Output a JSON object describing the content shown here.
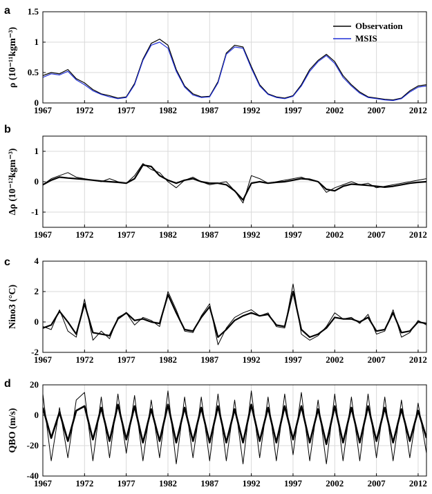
{
  "colors": {
    "observation": "#000000",
    "msis": "#1f2fd6",
    "grid": "#d9d9d9"
  },
  "chart_data": [
    {
      "panel": "a",
      "type": "line",
      "ylabel": "ρ (10⁻¹¹kgm⁻³)",
      "xlim": [
        1967,
        2013
      ],
      "ylim": [
        0,
        1.5
      ],
      "xticks": [
        1967,
        1972,
        1977,
        1982,
        1987,
        1992,
        1997,
        2002,
        2007,
        2012
      ],
      "yticks": [
        0,
        0.5,
        1,
        1.5
      ],
      "ytick_labels": [
        "0",
        "0.5",
        "1",
        "1.5"
      ],
      "grid": true,
      "legend": "top-right",
      "series": [
        {
          "name": "Observation",
          "x": [
            1967,
            1968,
            1969,
            1970,
            1971,
            1972,
            1973,
            1974,
            1975,
            1976,
            1977,
            1978,
            1979,
            1980,
            1981,
            1982,
            1983,
            1984,
            1985,
            1986,
            1987,
            1988,
            1989,
            1990,
            1991,
            1992,
            1993,
            1994,
            1995,
            1996,
            1997,
            1998,
            1999,
            2000,
            2001,
            2002,
            2003,
            2004,
            2005,
            2006,
            2007,
            2008,
            2009,
            2010,
            2011,
            2012,
            2013
          ],
          "y": [
            0.45,
            0.5,
            0.48,
            0.55,
            0.4,
            0.33,
            0.22,
            0.15,
            0.12,
            0.08,
            0.1,
            0.32,
            0.72,
            0.98,
            1.05,
            0.95,
            0.55,
            0.28,
            0.15,
            0.1,
            0.11,
            0.35,
            0.82,
            0.95,
            0.92,
            0.6,
            0.3,
            0.15,
            0.1,
            0.08,
            0.12,
            0.3,
            0.55,
            0.7,
            0.8,
            0.68,
            0.45,
            0.3,
            0.18,
            0.1,
            0.08,
            0.06,
            0.05,
            0.08,
            0.2,
            0.28,
            0.3
          ]
        },
        {
          "name": "MSIS",
          "x": [
            1967,
            1968,
            1969,
            1970,
            1971,
            1972,
            1973,
            1974,
            1975,
            1976,
            1977,
            1978,
            1979,
            1980,
            1981,
            1982,
            1983,
            1984,
            1985,
            1986,
            1987,
            1988,
            1989,
            1990,
            1991,
            1992,
            1993,
            1994,
            1995,
            1996,
            1997,
            1998,
            1999,
            2000,
            2001,
            2002,
            2003,
            2004,
            2005,
            2006,
            2007,
            2008,
            2009,
            2010,
            2011,
            2012,
            2013
          ],
          "y": [
            0.42,
            0.48,
            0.46,
            0.52,
            0.38,
            0.3,
            0.2,
            0.14,
            0.1,
            0.07,
            0.09,
            0.3,
            0.7,
            0.95,
            1.0,
            0.9,
            0.52,
            0.26,
            0.13,
            0.09,
            0.1,
            0.33,
            0.8,
            0.92,
            0.9,
            0.57,
            0.28,
            0.14,
            0.09,
            0.07,
            0.11,
            0.28,
            0.52,
            0.68,
            0.78,
            0.65,
            0.42,
            0.28,
            0.16,
            0.09,
            0.07,
            0.05,
            0.04,
            0.07,
            0.18,
            0.26,
            0.28
          ]
        }
      ]
    },
    {
      "panel": "b",
      "type": "line",
      "ylabel": "Δρ (10⁻¹²kgm⁻³)",
      "xlim": [
        1967,
        2013
      ],
      "ylim": [
        -1.5,
        1.5
      ],
      "xticks": [
        1967,
        1972,
        1977,
        1982,
        1987,
        1992,
        1997,
        2002,
        2007,
        2012
      ],
      "yticks": [
        -1,
        0,
        1
      ],
      "ytick_labels": [
        "-1",
        "0",
        "1"
      ],
      "grid": true,
      "series": [
        {
          "x": [
            1967,
            1968,
            1969,
            1970,
            1971,
            1972,
            1973,
            1974,
            1975,
            1976,
            1977,
            1978,
            1979,
            1980,
            1981,
            1982,
            1983,
            1984,
            1985,
            1986,
            1987,
            1988,
            1989,
            1990,
            1991,
            1992,
            1993,
            1994,
            1995,
            1996,
            1997,
            1998,
            1999,
            2000,
            2001,
            2002,
            2003,
            2004,
            2005,
            2006,
            2007,
            2008,
            2009,
            2010,
            2011,
            2012,
            2013
          ],
          "y": [
            -0.1,
            0.1,
            0.2,
            0.3,
            0.15,
            0.1,
            0.05,
            0.0,
            0.1,
            0.0,
            -0.05,
            0.2,
            0.6,
            0.4,
            0.3,
            0.0,
            -0.2,
            0.05,
            0.15,
            0.0,
            -0.1,
            -0.05,
            0.0,
            -0.3,
            -0.7,
            0.2,
            0.1,
            -0.05,
            0.0,
            0.05,
            0.1,
            0.15,
            0.05,
            0.0,
            -0.35,
            -0.2,
            -0.1,
            0.0,
            -0.1,
            -0.05,
            -0.2,
            -0.15,
            -0.1,
            -0.05,
            0.0,
            0.05,
            0.1
          ]
        },
        {
          "x": [
            1967,
            1968,
            1969,
            1970,
            1971,
            1972,
            1973,
            1974,
            1975,
            1976,
            1977,
            1978,
            1979,
            1980,
            1981,
            1982,
            1983,
            1984,
            1985,
            1986,
            1987,
            1988,
            1989,
            1990,
            1991,
            1992,
            1993,
            1994,
            1995,
            1996,
            1997,
            1998,
            1999,
            2000,
            2001,
            2002,
            2003,
            2004,
            2005,
            2006,
            2007,
            2008,
            2009,
            2010,
            2011,
            2012,
            2013
          ],
          "y": [
            -0.1,
            0.05,
            0.15,
            0.12,
            0.1,
            0.08,
            0.05,
            0.02,
            0.0,
            -0.02,
            -0.05,
            0.1,
            0.55,
            0.5,
            0.2,
            0.05,
            -0.05,
            0.05,
            0.1,
            0.0,
            -0.05,
            -0.05,
            -0.1,
            -0.3,
            -0.6,
            -0.05,
            0.0,
            -0.05,
            -0.02,
            0.0,
            0.05,
            0.1,
            0.08,
            0.0,
            -0.25,
            -0.3,
            -0.15,
            -0.08,
            -0.1,
            -0.12,
            -0.15,
            -0.18,
            -0.15,
            -0.1,
            -0.05,
            -0.02,
            0.0
          ]
        }
      ]
    },
    {
      "panel": "c",
      "type": "line",
      "ylabel": "Nino3 (°C)",
      "xlim": [
        1967,
        2013
      ],
      "ylim": [
        -2,
        4
      ],
      "xticks": [
        1967,
        1972,
        1977,
        1982,
        1987,
        1992,
        1997,
        2002,
        2007,
        2012
      ],
      "yticks": [
        -2,
        0,
        2,
        4
      ],
      "ytick_labels": [
        "-2",
        "0",
        "2",
        "4"
      ],
      "grid": true,
      "series": [
        {
          "x": [
            1967,
            1968,
            1969,
            1970,
            1971,
            1972,
            1973,
            1974,
            1975,
            1976,
            1977,
            1978,
            1979,
            1980,
            1981,
            1982,
            1983,
            1984,
            1985,
            1986,
            1987,
            1988,
            1989,
            1990,
            1991,
            1992,
            1993,
            1994,
            1995,
            1996,
            1997,
            1998,
            1999,
            2000,
            2001,
            2002,
            2003,
            2004,
            2005,
            2006,
            2007,
            2008,
            2009,
            2010,
            2011,
            2012,
            2013
          ],
          "y": [
            -0.3,
            -0.5,
            0.8,
            -0.6,
            -1.0,
            1.5,
            -1.2,
            -0.6,
            -1.1,
            0.3,
            0.6,
            -0.2,
            0.3,
            0.1,
            -0.3,
            2.0,
            0.8,
            -0.6,
            -0.7,
            0.4,
            1.2,
            -1.5,
            -0.4,
            0.3,
            0.6,
            0.8,
            0.4,
            0.6,
            -0.3,
            -0.4,
            2.5,
            -0.8,
            -1.2,
            -0.9,
            -0.3,
            0.6,
            0.2,
            0.3,
            -0.1,
            0.5,
            -0.8,
            -0.6,
            0.8,
            -1.0,
            -0.7,
            0.1,
            -0.2
          ]
        },
        {
          "x": [
            1967,
            1968,
            1969,
            1970,
            1971,
            1972,
            1973,
            1974,
            1975,
            1976,
            1977,
            1978,
            1979,
            1980,
            1981,
            1982,
            1983,
            1984,
            1985,
            1986,
            1987,
            1988,
            1989,
            1990,
            1991,
            1992,
            1993,
            1994,
            1995,
            1996,
            1997,
            1998,
            1999,
            2000,
            2001,
            2002,
            2003,
            2004,
            2005,
            2006,
            2007,
            2008,
            2009,
            2010,
            2011,
            2012,
            2013
          ],
          "y": [
            -0.4,
            -0.2,
            0.7,
            0.0,
            -0.8,
            1.2,
            -0.7,
            -0.8,
            -0.9,
            0.2,
            0.6,
            0.1,
            0.2,
            0.0,
            -0.1,
            1.8,
            0.6,
            -0.5,
            -0.6,
            0.3,
            1.0,
            -1.0,
            -0.5,
            0.1,
            0.4,
            0.6,
            0.4,
            0.5,
            -0.2,
            -0.3,
            2.0,
            -0.5,
            -1.0,
            -0.8,
            -0.4,
            0.3,
            0.2,
            0.2,
            0.0,
            0.3,
            -0.6,
            -0.5,
            0.6,
            -0.7,
            -0.6,
            0.0,
            -0.1
          ]
        }
      ]
    },
    {
      "panel": "d",
      "type": "line",
      "ylabel": "QBO (m/s)",
      "xlim": [
        1967,
        2013
      ],
      "ylim": [
        -40,
        20
      ],
      "xticks": [
        1967,
        1972,
        1977,
        1982,
        1987,
        1992,
        1997,
        2002,
        2007,
        2012
      ],
      "yticks": [
        -40,
        -20,
        0,
        20
      ],
      "ytick_labels": [
        "-40",
        "-20",
        "0",
        "20"
      ],
      "grid": true,
      "series": [
        {
          "x": [
            1967,
            1968,
            1969,
            1970,
            1971,
            1972,
            1973,
            1974,
            1975,
            1976,
            1977,
            1978,
            1979,
            1980,
            1981,
            1982,
            1983,
            1984,
            1985,
            1986,
            1987,
            1988,
            1989,
            1990,
            1991,
            1992,
            1993,
            1994,
            1995,
            1996,
            1997,
            1998,
            1999,
            2000,
            2001,
            2002,
            2003,
            2004,
            2005,
            2006,
            2007,
            2008,
            2009,
            2010,
            2011,
            2012,
            2013
          ],
          "y": [
            14,
            -30,
            5,
            -28,
            10,
            15,
            -30,
            12,
            -28,
            14,
            -25,
            13,
            -30,
            10,
            -28,
            16,
            -32,
            12,
            -28,
            12,
            -30,
            14,
            -30,
            10,
            -32,
            16,
            -28,
            12,
            -30,
            14,
            -26,
            15,
            -30,
            10,
            -32,
            14,
            -30,
            12,
            -30,
            14,
            -28,
            12,
            -30,
            10,
            -28,
            8,
            -25
          ]
        },
        {
          "x": [
            1967,
            1968,
            1969,
            1970,
            1971,
            1972,
            1973,
            1974,
            1975,
            1976,
            1977,
            1978,
            1979,
            1980,
            1981,
            1982,
            1983,
            1984,
            1985,
            1986,
            1987,
            1988,
            1989,
            1990,
            1991,
            1992,
            1993,
            1994,
            1995,
            1996,
            1997,
            1998,
            1999,
            2000,
            2001,
            2002,
            2003,
            2004,
            2005,
            2006,
            2007,
            2008,
            2009,
            2010,
            2011,
            2012,
            2013
          ],
          "y": [
            5,
            -15,
            2,
            -17,
            3,
            6,
            -16,
            5,
            -17,
            7,
            -16,
            6,
            -18,
            4,
            -17,
            7,
            -18,
            5,
            -17,
            5,
            -18,
            6,
            -18,
            4,
            -18,
            7,
            -17,
            5,
            -18,
            6,
            -16,
            6,
            -18,
            4,
            -19,
            6,
            -18,
            5,
            -18,
            6,
            -17,
            5,
            -18,
            4,
            -17,
            3,
            -15
          ]
        }
      ]
    }
  ]
}
